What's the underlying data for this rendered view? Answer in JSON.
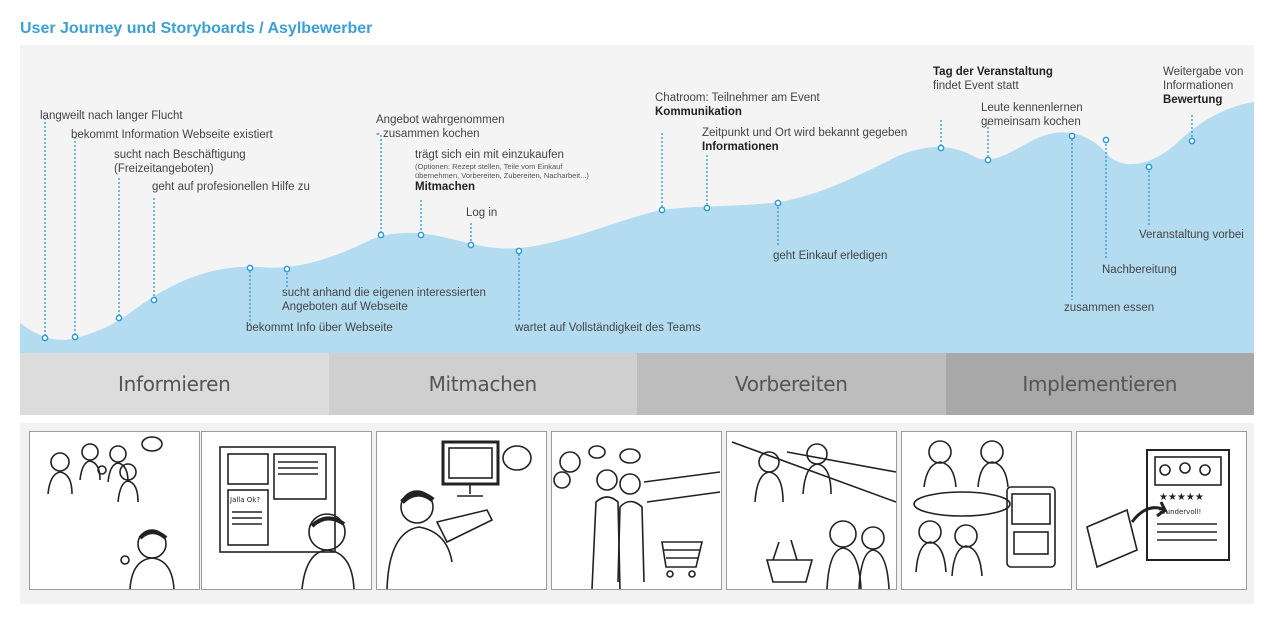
{
  "title": "User Journey und Storyboards / Asylbewerber",
  "colors": {
    "title": "#3aa0d8",
    "curve_fill": "#b3dcf1",
    "dot": "#2b9ad6"
  },
  "labels": {
    "l1": "langweilt nach langer Flucht",
    "l2": "bekommt Information Webseite existiert",
    "l3a": "sucht nach Beschäftigung",
    "l3b": "(Freizeitangeboten)",
    "l4": "geht auf profesionellen Hilfe zu",
    "l5": "bekommt Info über Webseite",
    "l6a": "sucht anhand die eigenen interessierten",
    "l6b": "Angeboten auf Webseite",
    "l7a": "Angebot wahrgenommen",
    "l7b": "- zusammen kochen",
    "l8a": "trägt sich ein mit einzukaufen",
    "l8b": "(Optionen: Rezept stellen, Teile vom Einkauf",
    "l8c": "übernehmen, Vorbereiten, Zubereiten, Nacharbeit...)",
    "l8d": "Mitmachen",
    "l9": "Log in",
    "l10": "wartet auf Vollständigkeit des Teams",
    "l11a": "Chatroom: Teilnehmer am Event",
    "l11b": "Kommunikation",
    "l12a": "Zeitpunkt und Ort wird bekannt gegeben",
    "l12b": "Informationen",
    "l13": "geht Einkauf erledigen",
    "l14a": "Tag der Veranstaltung",
    "l14b": "findet Event statt",
    "l15a": "Leute kennenlernen",
    "l15b": "gemeinsam kochen",
    "l16": "zusammen essen",
    "l17": "Nachbereitung",
    "l18": "Veranstaltung vorbei",
    "l19a": "Weitergabe von",
    "l19b": "Informationen",
    "l19c": "Bewertung"
  },
  "phases": [
    "Informieren",
    "Mitmachen",
    "Vorbereiten",
    "Implementieren"
  ],
  "storyboards": [
    {
      "name": "storyboard-informieren-friends",
      "hand_text": []
    },
    {
      "name": "storyboard-informieren-poster",
      "hand_text": [
        "Jalla Ok?"
      ]
    },
    {
      "name": "storyboard-mitmachen-computer",
      "hand_text": []
    },
    {
      "name": "storyboard-vorbereiten-shopping",
      "hand_text": []
    },
    {
      "name": "storyboard-vorbereiten-kitchen",
      "hand_text": []
    },
    {
      "name": "storyboard-implementieren-dinner",
      "hand_text": []
    },
    {
      "name": "storyboard-implementieren-rating",
      "hand_text": [
        "Wundervoll!"
      ]
    }
  ]
}
